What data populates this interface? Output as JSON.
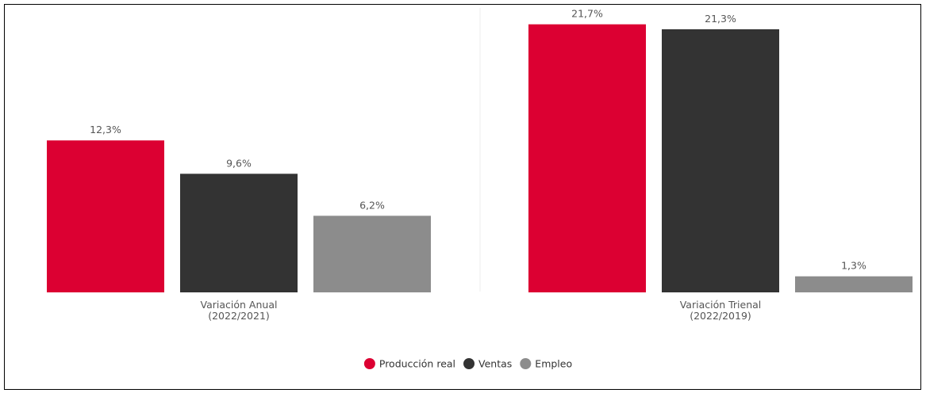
{
  "chart_data": {
    "type": "bar",
    "categories": [
      {
        "line1": "Variación Anual",
        "line2": "(2022/2021)"
      },
      {
        "line1": "Variación Trienal",
        "line2": "(2022/2019)"
      }
    ],
    "series": [
      {
        "name": "Producción real",
        "color": "#dc0032",
        "values": [
          12.3,
          21.7
        ],
        "labels": [
          "12,3%",
          "21,7%"
        ]
      },
      {
        "name": "Ventas",
        "color": "#333333",
        "values": [
          9.6,
          21.3
        ],
        "labels": [
          "9,6%",
          "21,3%"
        ]
      },
      {
        "name": "Empleo",
        "color": "#8c8c8c",
        "values": [
          6.2,
          1.3
        ],
        "labels": [
          "6,2%",
          "1,3%"
        ]
      }
    ],
    "ylim": [
      0,
      22
    ],
    "legend_position": "bottom-center",
    "grid": false
  }
}
